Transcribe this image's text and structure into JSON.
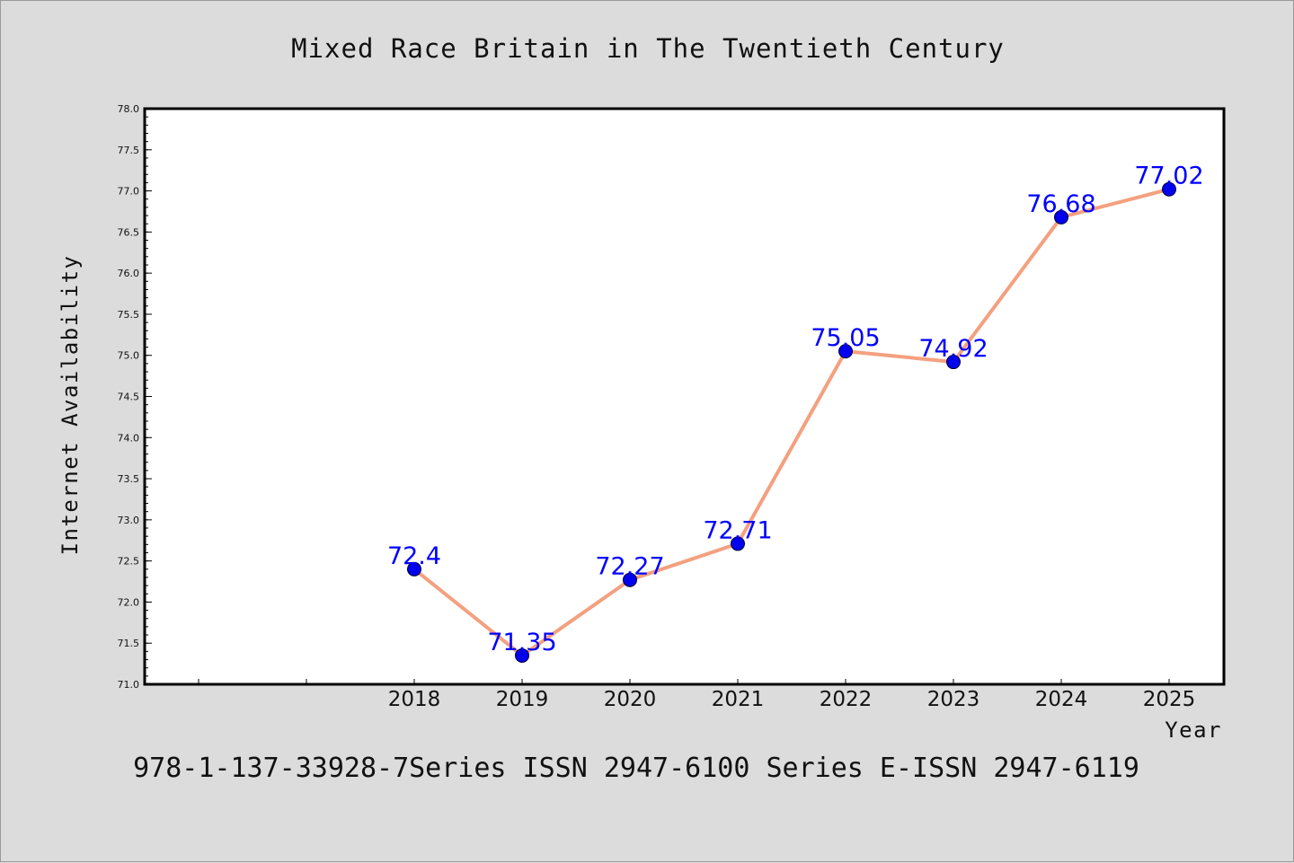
{
  "chart_data": {
    "type": "line",
    "title": "Mixed Race Britain in The Twentieth Century",
    "xlabel": "Year",
    "ylabel": "Internet Availability",
    "categories": [
      "2018",
      "2019",
      "2020",
      "2021",
      "2022",
      "2023",
      "2024",
      "2025"
    ],
    "series": [
      {
        "values": [
          72.4,
          71.35,
          72.27,
          72.71,
          75.05,
          74.92,
          76.68,
          77.02
        ]
      }
    ],
    "data_labels": [
      "72.4",
      "71.35",
      "72.27",
      "72.71",
      "75.05",
      "74.92",
      "76.68",
      "77.02"
    ],
    "ylim": [
      71.0,
      78.0
    ],
    "yticks": [
      "71.0",
      "71.5",
      "72.0",
      "72.5",
      "73.0",
      "73.5",
      "74.0",
      "74.5",
      "75.0",
      "75.5",
      "76.0",
      "76.5",
      "77.0",
      "77.5",
      "78.0"
    ],
    "grid": false,
    "line_color": "#f4a07f",
    "marker_color": "#0000ee",
    "label_color": "#0000ff"
  },
  "footer_text": "978-1-137-33928-7Series ISSN 2947-6100 Series E-ISSN 2947-6119"
}
